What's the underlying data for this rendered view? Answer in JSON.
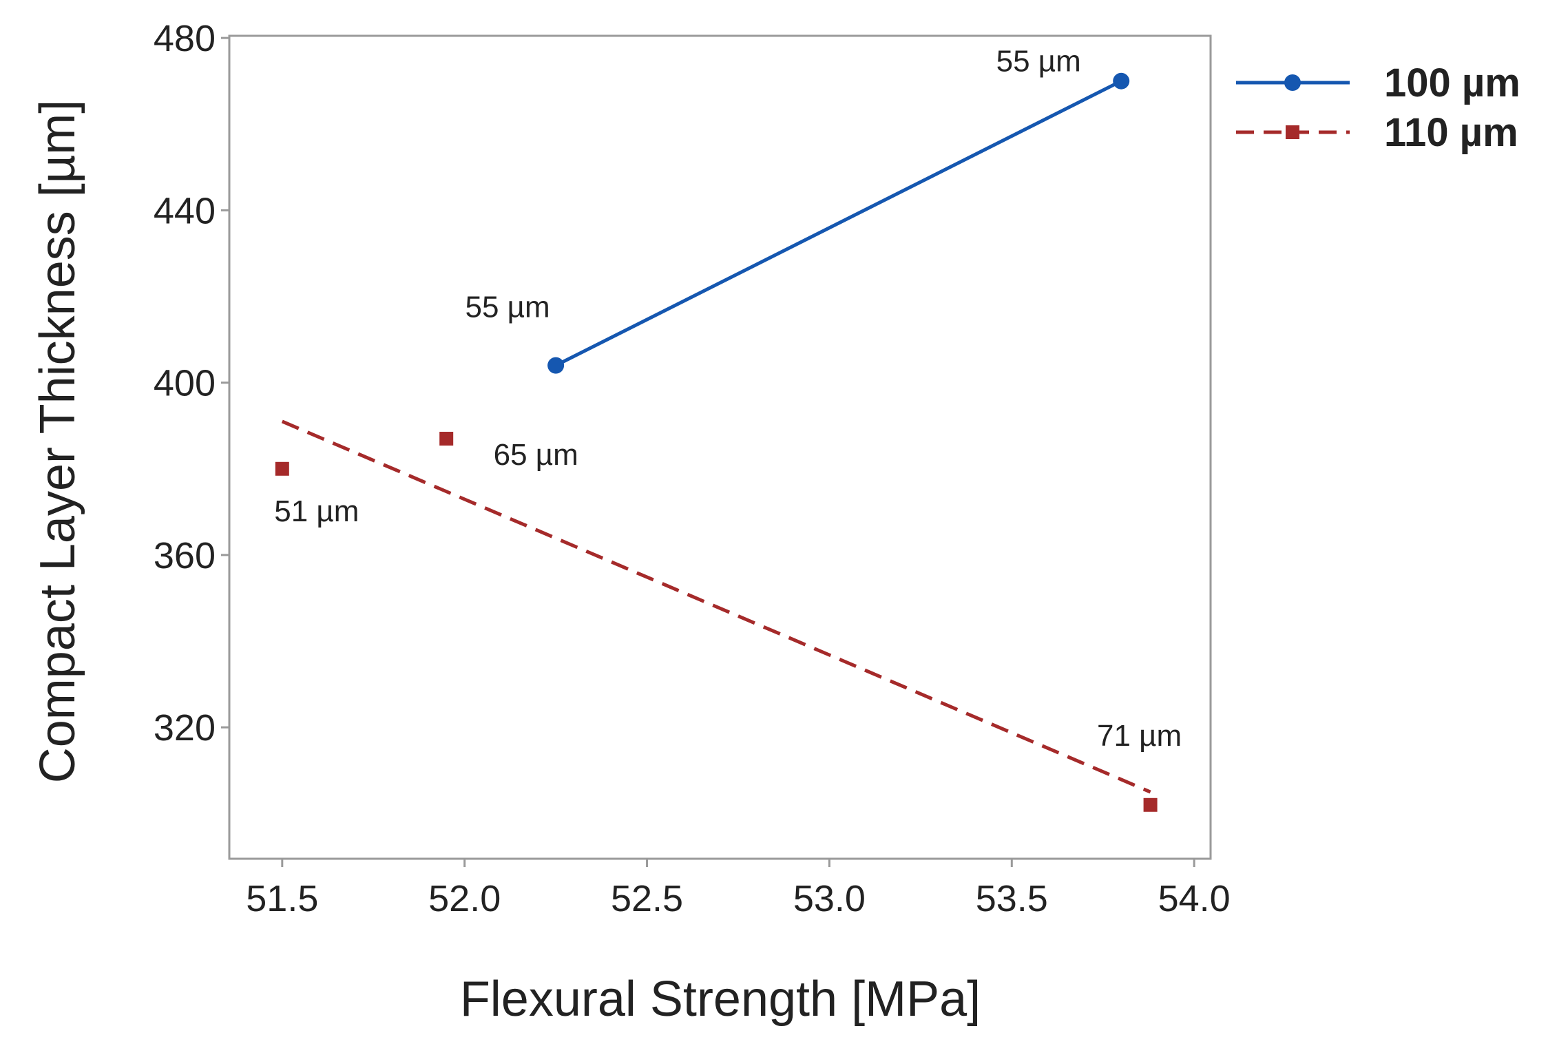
{
  "chart_data": {
    "type": "line",
    "title": "",
    "xlabel": "Flexural Strength [MPa]",
    "ylabel": "Compact Layer Thickness [µm]",
    "xlim": [
      51.355,
      54.045
    ],
    "ylim": [
      289.5,
      480.5
    ],
    "xticks": [
      51.5,
      52.0,
      52.5,
      53.0,
      53.5,
      54.0
    ],
    "xtick_labels": [
      "51.5",
      "52.0",
      "52.5",
      "53.0",
      "53.5",
      "54.0"
    ],
    "yticks": [
      320,
      360,
      400,
      440,
      480
    ],
    "ytick_labels": [
      "320",
      "360",
      "400",
      "440",
      "480"
    ],
    "grid": false,
    "legend_position": "right-top, outside plot",
    "series": [
      {
        "name": "100 µm",
        "color": "#1557b0",
        "line_style": "solid",
        "marker": "circle",
        "points": [
          {
            "x": 52.25,
            "y": 404,
            "label": "55 µm"
          },
          {
            "x": 53.8,
            "y": 470,
            "label": "55 µm"
          }
        ],
        "fit": {
          "x": [
            52.25,
            53.8
          ],
          "y": [
            404,
            470
          ]
        }
      },
      {
        "name": "110 µm",
        "color": "#a52a2a",
        "line_style": "dashed",
        "marker": "square",
        "points": [
          {
            "x": 51.5,
            "y": 380,
            "label": "51 µm"
          },
          {
            "x": 51.95,
            "y": 387,
            "label": "65 µm"
          },
          {
            "x": 53.88,
            "y": 302,
            "label": "71 µm"
          }
        ],
        "fit": {
          "x": [
            51.5,
            53.88
          ],
          "y": [
            391,
            305
          ]
        }
      }
    ]
  }
}
